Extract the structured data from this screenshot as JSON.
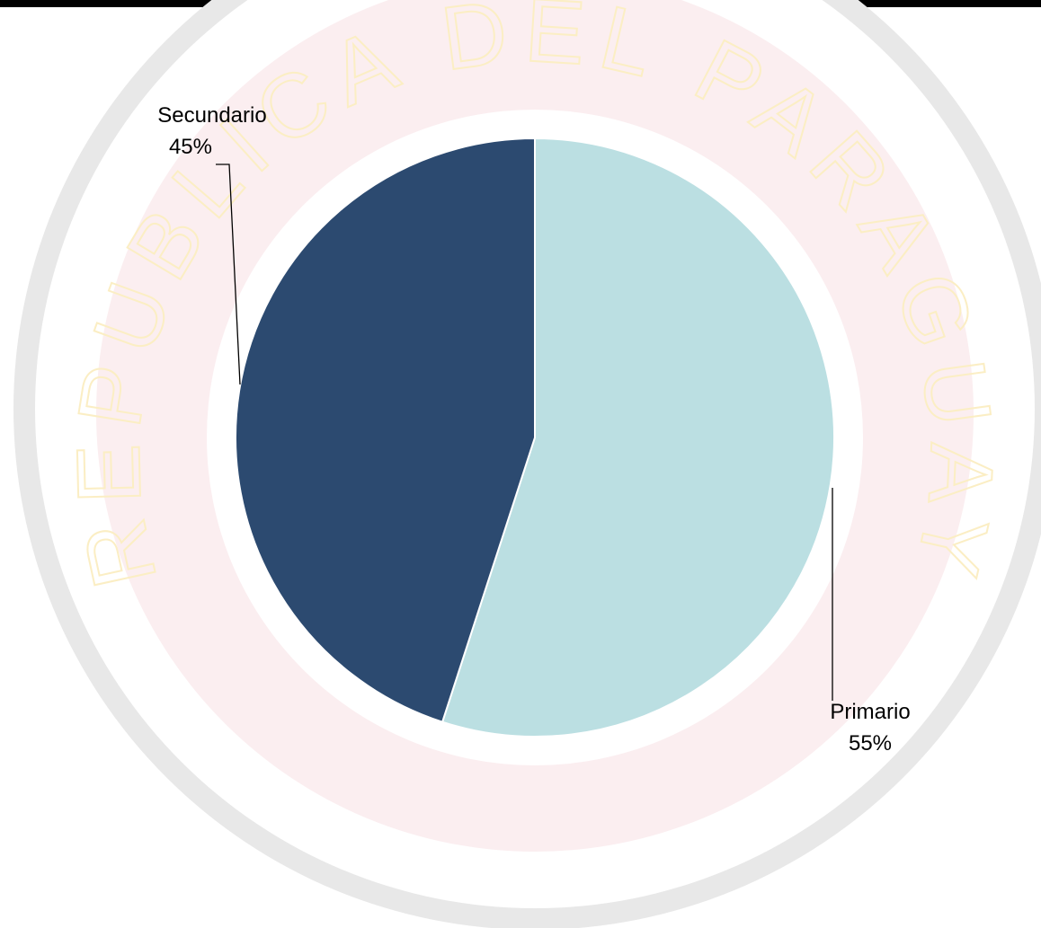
{
  "chart_data": {
    "type": "pie",
    "watermark": "REPUBLICA DEL PARAGUAY",
    "categories": [
      "Primario",
      "Secundario"
    ],
    "values": [
      55,
      45
    ],
    "value_labels": [
      "55%",
      "45%"
    ],
    "colors": [
      "#bbdfe2",
      "#2c4a70"
    ]
  }
}
